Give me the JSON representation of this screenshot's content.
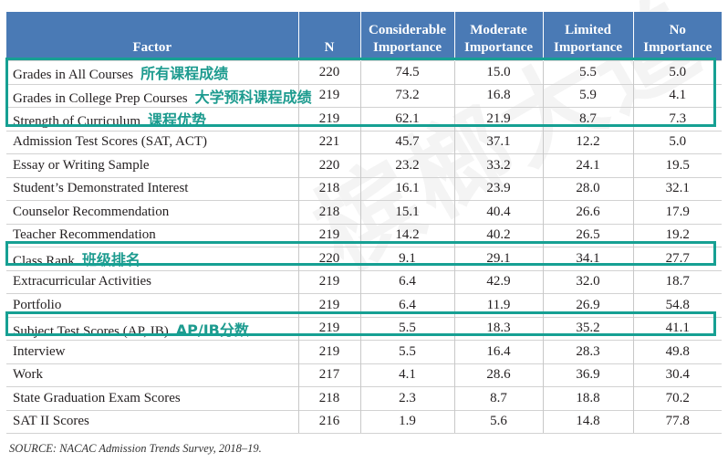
{
  "headers": [
    {
      "line1": "",
      "line2": "Factor"
    },
    {
      "line1": "",
      "line2": "N"
    },
    {
      "line1": "Considerable",
      "line2": "Importance"
    },
    {
      "line1": "Moderate",
      "line2": "Importance"
    },
    {
      "line1": "Limited",
      "line2": "Importance"
    },
    {
      "line1": "No",
      "line2": "Importance"
    }
  ],
  "rows": [
    {
      "factor": "Grades in All Courses",
      "note": "所有课程成绩",
      "n": "220",
      "considerable": "74.5",
      "moderate": "15.0",
      "limited": "5.5",
      "none": "5.0"
    },
    {
      "factor": "Grades in College Prep Courses",
      "note": "大学预科课程成绩",
      "n": "219",
      "considerable": "73.2",
      "moderate": "16.8",
      "limited": "5.9",
      "none": "4.1"
    },
    {
      "factor": "Strength of Curriculum",
      "note": "课程优势",
      "n": "219",
      "considerable": "62.1",
      "moderate": "21.9",
      "limited": "8.7",
      "none": "7.3"
    },
    {
      "factor": "Admission Test Scores (SAT, ACT)",
      "note": "",
      "n": "221",
      "considerable": "45.7",
      "moderate": "37.1",
      "limited": "12.2",
      "none": "5.0"
    },
    {
      "factor": "Essay or Writing Sample",
      "note": "",
      "n": "220",
      "considerable": "23.2",
      "moderate": "33.2",
      "limited": "24.1",
      "none": "19.5"
    },
    {
      "factor": "Student’s Demonstrated Interest",
      "note": "",
      "n": "218",
      "considerable": "16.1",
      "moderate": "23.9",
      "limited": "28.0",
      "none": "32.1"
    },
    {
      "factor": "Counselor Recommendation",
      "note": "",
      "n": "218",
      "considerable": "15.1",
      "moderate": "40.4",
      "limited": "26.6",
      "none": "17.9"
    },
    {
      "factor": "Teacher Recommendation",
      "note": "",
      "n": "219",
      "considerable": "14.2",
      "moderate": "40.2",
      "limited": "26.5",
      "none": "19.2"
    },
    {
      "factor": "Class Rank",
      "note": "班级排名",
      "n": "220",
      "considerable": "9.1",
      "moderate": "29.1",
      "limited": "34.1",
      "none": "27.7"
    },
    {
      "factor": "Extracurricular Activities",
      "note": "",
      "n": "219",
      "considerable": "6.4",
      "moderate": "42.9",
      "limited": "32.0",
      "none": "18.7"
    },
    {
      "factor": "Portfolio",
      "note": "",
      "n": "219",
      "considerable": "6.4",
      "moderate": "11.9",
      "limited": "26.9",
      "none": "54.8"
    },
    {
      "factor": "Subject Test Scores (AP, IB)",
      "note": "AP/IB分数",
      "n": "219",
      "considerable": "5.5",
      "moderate": "18.3",
      "limited": "35.2",
      "none": "41.1"
    },
    {
      "factor": "Interview",
      "note": "",
      "n": "219",
      "considerable": "5.5",
      "moderate": "16.4",
      "limited": "28.3",
      "none": "49.8"
    },
    {
      "factor": "Work",
      "note": "",
      "n": "217",
      "considerable": "4.1",
      "moderate": "28.6",
      "limited": "36.9",
      "none": "30.4"
    },
    {
      "factor": "State Graduation Exam Scores",
      "note": "",
      "n": "218",
      "considerable": "2.3",
      "moderate": "8.7",
      "limited": "18.8",
      "none": "70.2"
    },
    {
      "factor": "SAT II Scores",
      "note": "",
      "n": "216",
      "considerable": "1.9",
      "moderate": "5.6",
      "limited": "14.8",
      "none": "77.8"
    }
  ],
  "watermark": "槟榔大道",
  "source": "SOURCE: NACAC Admission Trends Survey, 2018–19.",
  "colors": {
    "header_bg": "#4a7ab5",
    "highlight": "#16a093",
    "note_text": "#1d9b8f"
  }
}
